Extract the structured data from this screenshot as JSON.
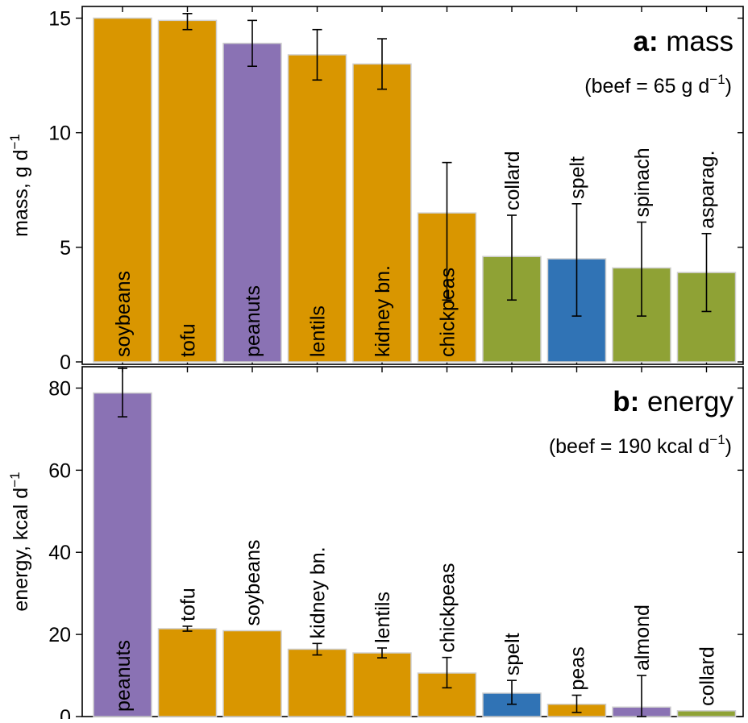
{
  "chart_data": [
    {
      "type": "bar",
      "panel_letter": "a:",
      "title": "mass",
      "subtitle": "(beef = 65 g d",
      "subtitle_sup": "−1",
      "subtitle_end": ")",
      "ylabel": "mass, g d",
      "ylabel_sup": "−1",
      "ylim": [
        0,
        15
      ],
      "yticks": [
        "0",
        "5",
        "10",
        "15"
      ],
      "ytick_values": [
        0,
        5,
        10,
        15
      ],
      "categories": [
        "soybeans",
        "tofu",
        "peanuts",
        "lentils",
        "kidney bn.",
        "chickpeas",
        "collard",
        "spelt",
        "spinach",
        "asparag."
      ],
      "values": [
        15.0,
        14.9,
        13.9,
        13.4,
        13.0,
        6.5,
        4.6,
        4.5,
        4.1,
        3.9
      ],
      "error_low": [
        15.0,
        14.5,
        12.9,
        12.3,
        11.9,
        2.7,
        2.7,
        2.0,
        2.0,
        2.2
      ],
      "error_high": [
        15.0,
        15.2,
        14.9,
        14.5,
        14.1,
        8.7,
        6.4,
        6.9,
        6.1,
        5.6
      ],
      "colors": [
        "#d99600",
        "#d99600",
        "#8a72b4",
        "#d99600",
        "#d99600",
        "#d99600",
        "#8fa235",
        "#3073b5",
        "#8fa235",
        "#8fa235"
      ],
      "label_inside": [
        true,
        true,
        true,
        true,
        true,
        true,
        false,
        false,
        false,
        false
      ],
      "grid": false
    },
    {
      "type": "bar",
      "panel_letter": "b:",
      "title": "energy",
      "subtitle": "(beef = 190 kcal d",
      "subtitle_sup": "−1",
      "subtitle_end": ")",
      "ylabel": "energy, kcal d",
      "ylabel_sup": "−1",
      "ylim": [
        0,
        85
      ],
      "yticks": [
        "0",
        "20",
        "40",
        "60",
        "80"
      ],
      "ytick_values": [
        0,
        20,
        40,
        60,
        80
      ],
      "categories": [
        "peanuts",
        "tofu",
        "soybeans",
        "kidney bn.",
        "lentils",
        "chickpeas",
        "spelt",
        "peas",
        "almond",
        "collard"
      ],
      "values": [
        78.8,
        21.4,
        20.9,
        16.4,
        15.5,
        10.6,
        5.7,
        3.0,
        2.3,
        1.4
      ],
      "error_low": [
        73.0,
        20.8,
        20.9,
        15.0,
        14.3,
        7.0,
        3.0,
        1.0,
        0.0,
        1.4
      ],
      "error_high": [
        84.8,
        22.0,
        20.9,
        17.8,
        16.7,
        14.4,
        8.8,
        5.2,
        10.0,
        1.4
      ],
      "colors": [
        "#8a72b4",
        "#d99600",
        "#d99600",
        "#d99600",
        "#d99600",
        "#d99600",
        "#3073b5",
        "#d99600",
        "#8a72b4",
        "#8fa235"
      ],
      "label_inside": [
        true,
        false,
        false,
        false,
        false,
        false,
        false,
        false,
        false,
        false
      ],
      "grid": false
    }
  ]
}
